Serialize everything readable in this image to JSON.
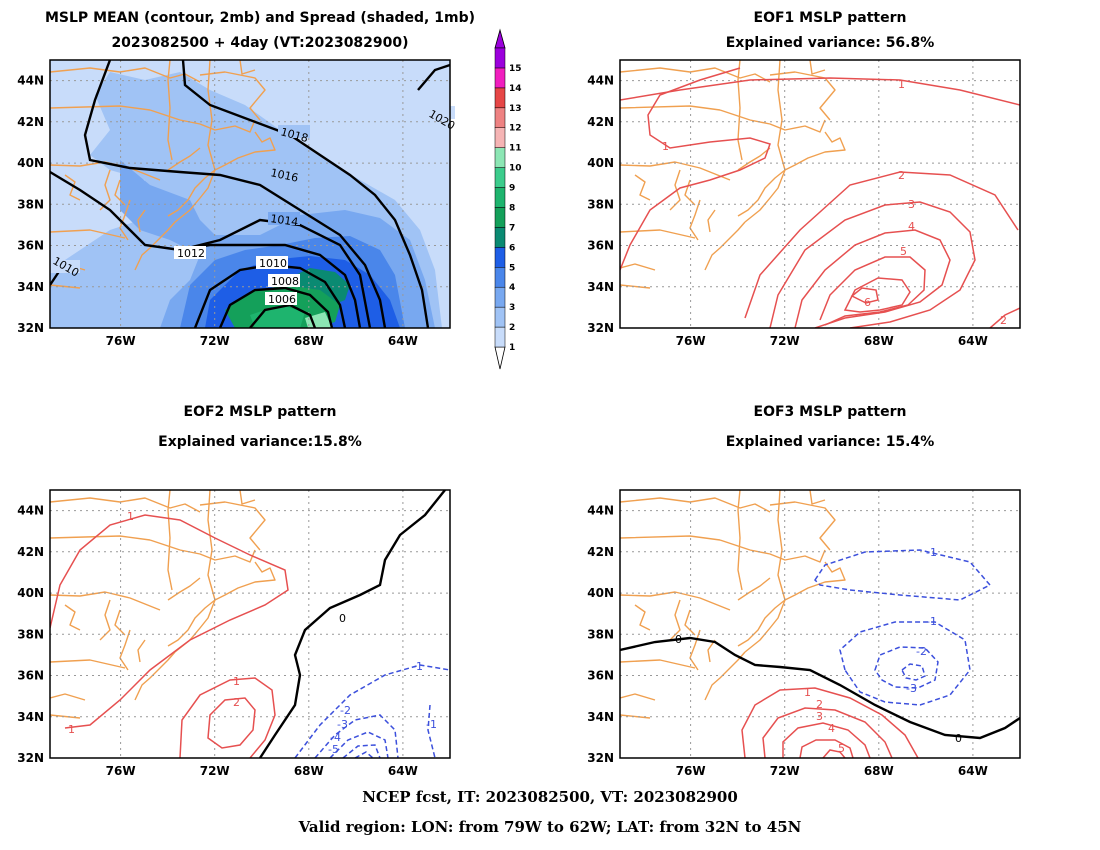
{
  "panels": [
    {
      "id": "p1",
      "title1": "MSLP MEAN (contour, 2mb) and Spread (shaded, 1mb)",
      "title2": "2023082500 + 4day (VT:2023082900)"
    },
    {
      "id": "p2",
      "title1": "EOF1 MSLP pattern",
      "title2": "Explained variance: 56.8%"
    },
    {
      "id": "p3",
      "title1": "EOF2 MSLP pattern",
      "title2": "Explained variance:15.8%"
    },
    {
      "id": "p4",
      "title1": "EOF3 MSLP pattern",
      "title2": "Explained variance: 15.4%"
    }
  ],
  "axes": {
    "lat_labels": [
      "44N",
      "42N",
      "40N",
      "38N",
      "36N",
      "34N",
      "32N"
    ],
    "lon_labels": [
      "76W",
      "72W",
      "68W",
      "64W"
    ]
  },
  "colorbar": {
    "labels": [
      "1",
      "2",
      "3",
      "4",
      "5",
      "6",
      "7",
      "8",
      "9",
      "10",
      "11",
      "12",
      "13",
      "14",
      "15"
    ],
    "colors": [
      "#c8dcfa",
      "#a0c3f5",
      "#78a8f0",
      "#4a86ea",
      "#1e5ee6",
      "#0a8a72",
      "#14a05a",
      "#1eb46e",
      "#3ccc8c",
      "#8ce6b4",
      "#f5b4b4",
      "#ee8282",
      "#e64646",
      "#f01ebe",
      "#9b00dc"
    ]
  },
  "colors": {
    "coast": "#f0a050",
    "positive": "#e65050",
    "negative": "#3c50dc",
    "zero": "#000000"
  },
  "mean_labels": [
    "1020",
    "1018",
    "1016",
    "1014",
    "1012",
    "1010",
    "1010",
    "1008",
    "1006"
  ],
  "eof1_labels": [
    "1",
    "1",
    "2",
    "3",
    "4",
    "5",
    "6",
    "2"
  ],
  "eof2_labels": [
    "1",
    "1",
    "2",
    "1",
    "0",
    "-1",
    "-1",
    "-2",
    "-3",
    "-4",
    "-5"
  ],
  "eof3_labels": [
    "-1",
    "-1",
    "-2",
    "-3",
    "0",
    "0",
    "1",
    "2",
    "3",
    "4",
    "5"
  ],
  "footer": {
    "line1": "NCEP fcst, IT: 2023082500, VT: 2023082900",
    "line2": "Valid region: LON: from 79W to 62W; LAT: from 32N to 45N"
  }
}
